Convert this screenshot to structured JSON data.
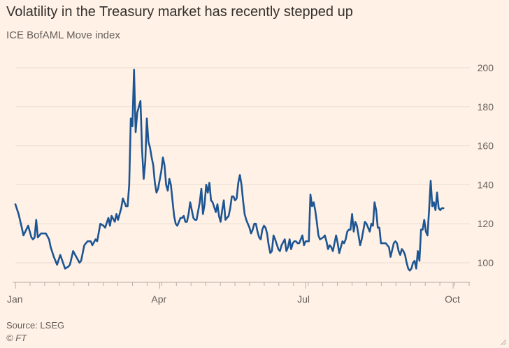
{
  "header": {
    "title": "Volatility in the Treasury market has recently stepped up",
    "subtitle": "ICE BofAML Move index"
  },
  "footer": {
    "source": "Source: LSEG",
    "credit": "© FT"
  },
  "colors": {
    "background": "#FFF1E5",
    "line": "#1D5593",
    "grid": "#E8DCD2",
    "axis": "#B7ADA5",
    "text": "#66605C"
  },
  "chart_data": {
    "type": "line",
    "title": "Volatility in the Treasury market has recently stepped up",
    "subtitle": "ICE BofAML Move index",
    "ylim": [
      90,
      200
    ],
    "yticks": [
      100,
      120,
      140,
      160,
      180,
      200
    ],
    "y_axis_side": "right",
    "grid": true,
    "xlim": [
      0,
      283
    ],
    "xticks": [
      {
        "x": 0,
        "label": "Jan"
      },
      {
        "x": 90,
        "label": "Apr"
      },
      {
        "x": 181,
        "label": "Jul"
      },
      {
        "x": 273,
        "label": "Oct"
      }
    ],
    "series": [
      {
        "values": [
          [
            0,
            130
          ],
          [
            2,
            125
          ],
          [
            4,
            118
          ],
          [
            5,
            114
          ],
          [
            8,
            119
          ],
          [
            10,
            113
          ],
          [
            11,
            112
          ],
          [
            12,
            113
          ],
          [
            13,
            122
          ],
          [
            14,
            113
          ],
          [
            16,
            115
          ],
          [
            19,
            115
          ],
          [
            21,
            112
          ],
          [
            22,
            108
          ],
          [
            24,
            103
          ],
          [
            26,
            99
          ],
          [
            28,
            104
          ],
          [
            31,
            97
          ],
          [
            33,
            98
          ],
          [
            34,
            99
          ],
          [
            36,
            106
          ],
          [
            38,
            103
          ],
          [
            40,
            100
          ],
          [
            41,
            101
          ],
          [
            43,
            109
          ],
          [
            45,
            111
          ],
          [
            47,
            111
          ],
          [
            48,
            109
          ],
          [
            50,
            112
          ],
          [
            51,
            111
          ],
          [
            53,
            120
          ],
          [
            55,
            119
          ],
          [
            56,
            118
          ],
          [
            58,
            123
          ],
          [
            59,
            119
          ],
          [
            60,
            124
          ],
          [
            62,
            121
          ],
          [
            63,
            125
          ],
          [
            64,
            122
          ],
          [
            66,
            128
          ],
          [
            67,
            133
          ],
          [
            69,
            129
          ],
          [
            70,
            129
          ],
          [
            71,
            140
          ],
          [
            72,
            174
          ],
          [
            73,
            170
          ],
          [
            74,
            199
          ],
          [
            75,
            167
          ],
          [
            76,
            177
          ],
          [
            77,
            180
          ],
          [
            78,
            183
          ],
          [
            79,
            158
          ],
          [
            80,
            143
          ],
          [
            81,
            152
          ],
          [
            82,
            174
          ],
          [
            83,
            162
          ],
          [
            84,
            159
          ],
          [
            85,
            154
          ],
          [
            86,
            150
          ],
          [
            87,
            141
          ],
          [
            88,
            136
          ],
          [
            89,
            138
          ],
          [
            91,
            147
          ],
          [
            92,
            154
          ],
          [
            93,
            150
          ],
          [
            94,
            140
          ],
          [
            95,
            137
          ],
          [
            96,
            143
          ],
          [
            97,
            140
          ],
          [
            98,
            132
          ],
          [
            99,
            124
          ],
          [
            100,
            120
          ],
          [
            101,
            119
          ],
          [
            103,
            123
          ],
          [
            104,
            123
          ],
          [
            105,
            124
          ],
          [
            106,
            121
          ],
          [
            107,
            121
          ],
          [
            108,
            125
          ],
          [
            109,
            131
          ],
          [
            111,
            123
          ],
          [
            112,
            122
          ],
          [
            113,
            122
          ],
          [
            115,
            131
          ],
          [
            116,
            138
          ],
          [
            117,
            125
          ],
          [
            118,
            130
          ],
          [
            119,
            140
          ],
          [
            120,
            136
          ],
          [
            121,
            141
          ],
          [
            122,
            132
          ],
          [
            123,
            131
          ],
          [
            125,
            126
          ],
          [
            126,
            130
          ],
          [
            127,
            124
          ],
          [
            128,
            121
          ],
          [
            129,
            127
          ],
          [
            130,
            132
          ],
          [
            131,
            122
          ],
          [
            133,
            124
          ],
          [
            134,
            128
          ],
          [
            135,
            134
          ],
          [
            136,
            134
          ],
          [
            137,
            132
          ],
          [
            138,
            133
          ],
          [
            139,
            141
          ],
          [
            140,
            145
          ],
          [
            141,
            140
          ],
          [
            142,
            132
          ],
          [
            143,
            125
          ],
          [
            144,
            122
          ],
          [
            146,
            118
          ],
          [
            147,
            115
          ],
          [
            148,
            117
          ],
          [
            149,
            120
          ],
          [
            150,
            120
          ],
          [
            151,
            116
          ],
          [
            152,
            113
          ],
          [
            153,
            112
          ],
          [
            154,
            117
          ],
          [
            155,
            119
          ],
          [
            156,
            118
          ],
          [
            157,
            115
          ],
          [
            158,
            109
          ],
          [
            159,
            105
          ],
          [
            160,
            106
          ],
          [
            161,
            114
          ],
          [
            162,
            112
          ],
          [
            164,
            107
          ],
          [
            165,
            106
          ],
          [
            166,
            109
          ],
          [
            168,
            112
          ],
          [
            169,
            106
          ],
          [
            170,
            108
          ],
          [
            171,
            112
          ],
          [
            172,
            107
          ],
          [
            173,
            110
          ],
          [
            174,
            111
          ],
          [
            175,
            111
          ],
          [
            176,
            110
          ],
          [
            177,
            110
          ],
          [
            178,
            112
          ],
          [
            179,
            114
          ],
          [
            180,
            109
          ],
          [
            181,
            111
          ],
          [
            182,
            111
          ],
          [
            183,
            111
          ],
          [
            184,
            135
          ],
          [
            185,
            129
          ],
          [
            186,
            131
          ],
          [
            187,
            127
          ],
          [
            188,
            121
          ],
          [
            189,
            114
          ],
          [
            190,
            112
          ],
          [
            192,
            113
          ],
          [
            193,
            114
          ],
          [
            194,
            111
          ],
          [
            195,
            107
          ],
          [
            196,
            109
          ],
          [
            197,
            108
          ],
          [
            198,
            106
          ],
          [
            200,
            114
          ],
          [
            201,
            110
          ],
          [
            202,
            105
          ],
          [
            204,
            111
          ],
          [
            205,
            110
          ],
          [
            206,
            112
          ],
          [
            207,
            116
          ],
          [
            208,
            117
          ],
          [
            209,
            117
          ],
          [
            210,
            125
          ],
          [
            211,
            116
          ],
          [
            212,
            121
          ],
          [
            213,
            119
          ],
          [
            214,
            114
          ],
          [
            215,
            109
          ],
          [
            216,
            112
          ],
          [
            218,
            121
          ],
          [
            219,
            120
          ],
          [
            221,
            116
          ],
          [
            222,
            120
          ],
          [
            223,
            119
          ],
          [
            224,
            131
          ],
          [
            225,
            127
          ],
          [
            226,
            118
          ],
          [
            227,
            118
          ],
          [
            228,
            110
          ],
          [
            230,
            110
          ],
          [
            231,
            110
          ],
          [
            232,
            109
          ],
          [
            233,
            108
          ],
          [
            234,
            103
          ],
          [
            236,
            110
          ],
          [
            237,
            111
          ],
          [
            238,
            110
          ],
          [
            239,
            106
          ],
          [
            240,
            104
          ],
          [
            241,
            107
          ],
          [
            242,
            106
          ],
          [
            243,
            104
          ],
          [
            244,
            100
          ],
          [
            245,
            97
          ],
          [
            246,
            96
          ],
          [
            247,
            97
          ],
          [
            248,
            100
          ],
          [
            249,
            101
          ],
          [
            250,
            97
          ],
          [
            251,
            106
          ],
          [
            252,
            101
          ],
          [
            253,
            117
          ],
          [
            254,
            117
          ],
          [
            255,
            122
          ],
          [
            256,
            116
          ],
          [
            257,
            114
          ],
          [
            258,
            127
          ],
          [
            259,
            142
          ],
          [
            260,
            129
          ],
          [
            261,
            131
          ],
          [
            262,
            127
          ],
          [
            263,
            136
          ],
          [
            264,
            128
          ],
          [
            265,
            127
          ],
          [
            266,
            128
          ],
          [
            267,
            128
          ]
        ]
      }
    ]
  }
}
